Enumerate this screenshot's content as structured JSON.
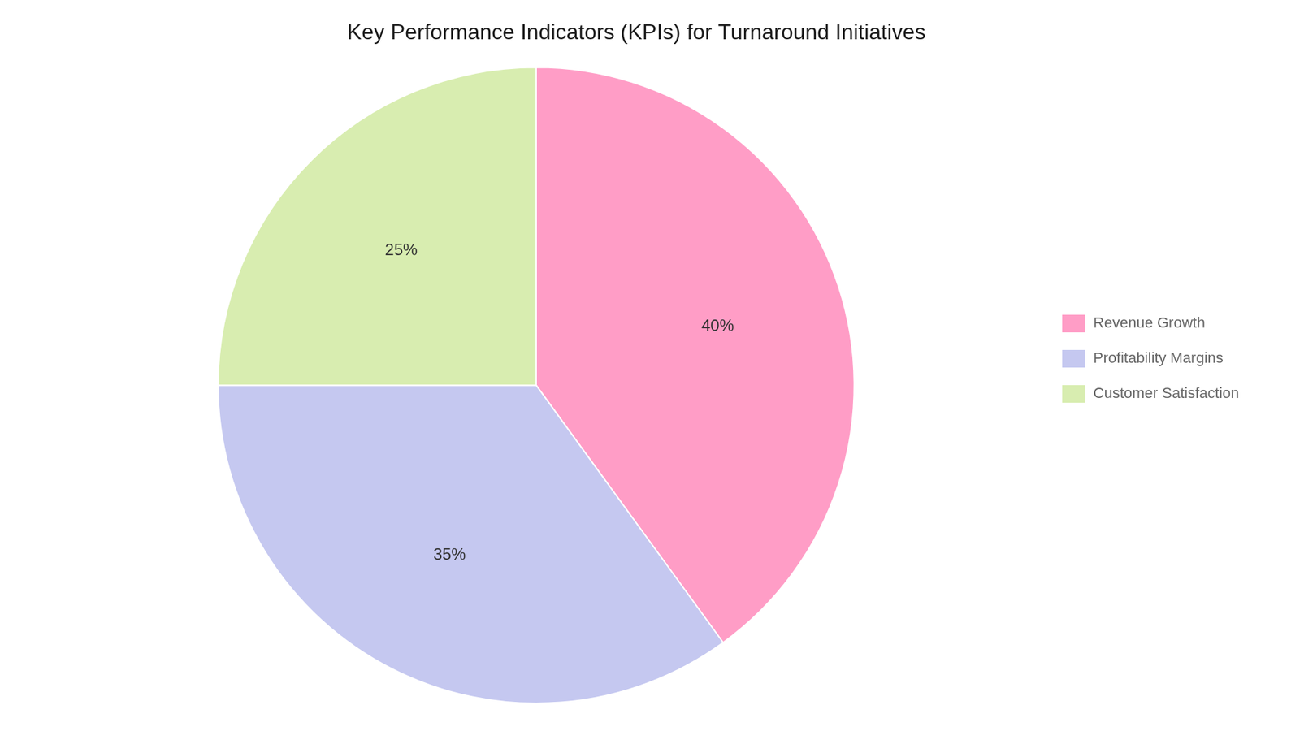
{
  "chart_data": {
    "type": "pie",
    "title": "Key Performance Indicators (KPIs) for Turnaround Initiatives",
    "categories": [
      "Revenue Growth",
      "Profitability Margins",
      "Customer Satisfaction"
    ],
    "values": [
      40,
      35,
      25
    ],
    "value_labels": [
      "40%",
      "35%",
      "25%"
    ],
    "colors": [
      "#FF9DC6",
      "#C5C8F0",
      "#D8EDB0"
    ],
    "data_labels": true,
    "legend": "right"
  }
}
